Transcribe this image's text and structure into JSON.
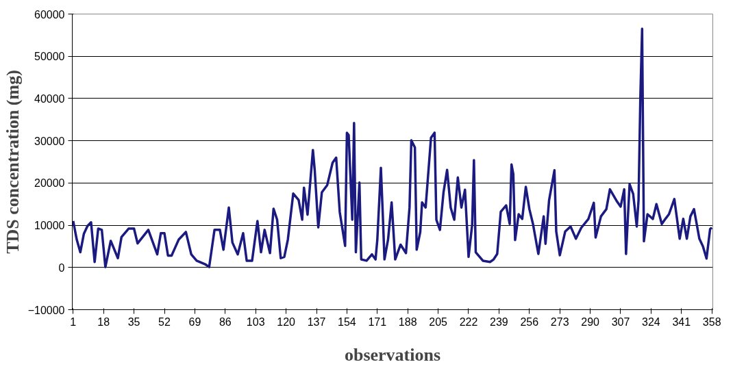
{
  "chart_data": {
    "type": "line",
    "xlabel": "observations",
    "ylabel": "TDS concentration (mg)",
    "x": [
      1,
      3,
      5,
      7,
      9,
      11,
      13,
      15,
      17,
      19,
      22,
      26,
      28,
      32,
      35,
      37,
      43,
      48,
      50,
      52,
      54,
      56,
      60,
      64,
      67,
      70,
      75,
      77,
      80,
      83,
      85,
      88,
      90,
      93,
      96,
      98,
      101,
      104,
      106,
      108,
      111,
      113,
      115,
      117,
      119,
      121,
      124,
      127,
      129,
      130,
      132,
      135,
      136,
      138,
      140,
      143,
      146,
      148,
      150,
      153,
      154,
      155,
      157,
      158,
      159,
      161,
      162,
      165,
      168,
      170,
      171,
      173,
      174,
      175,
      177,
      179,
      181,
      184,
      187,
      189,
      190,
      192,
      193,
      195,
      196,
      198,
      201,
      203,
      204,
      206,
      208,
      210,
      212,
      214,
      216,
      218,
      220,
      222,
      224,
      225,
      226,
      230,
      234,
      236,
      238,
      240,
      243,
      245,
      246,
      247,
      248,
      250,
      252,
      254,
      256,
      258,
      261,
      264,
      265,
      267,
      270,
      271,
      273,
      276,
      279,
      282,
      285,
      289,
      292,
      293,
      296,
      299,
      301,
      305,
      307,
      309,
      310,
      312,
      314,
      316,
      317,
      318,
      319,
      320,
      322,
      325,
      327,
      330,
      332,
      334,
      337,
      340,
      342,
      344,
      346,
      348,
      351,
      353,
      355,
      357,
      358
    ],
    "series": [
      {
        "color": "#1a1a80",
        "values": [
          11000,
          6600,
          3600,
          8000,
          9800,
          10700,
          1300,
          9200,
          8900,
          100,
          6300,
          2200,
          7200,
          9200,
          9200,
          5700,
          8900,
          3100,
          8100,
          8100,
          2800,
          2800,
          6600,
          8400,
          3100,
          1600,
          700,
          100,
          8900,
          8900,
          4200,
          14200,
          5900,
          3100,
          8100,
          1600,
          1600,
          11000,
          3600,
          8900,
          3400,
          13900,
          11300,
          2200,
          2500,
          6600,
          17500,
          16000,
          11300,
          18900,
          12500,
          27800,
          23100,
          9500,
          17800,
          19500,
          24800,
          26000,
          13100,
          5100,
          31900,
          31300,
          11300,
          34200,
          3600,
          20100,
          1900,
          1600,
          3100,
          1900,
          6600,
          23600,
          13100,
          1900,
          6600,
          15400,
          1900,
          5400,
          3400,
          14200,
          30100,
          28400,
          4200,
          8400,
          15400,
          14200,
          30700,
          31900,
          11300,
          8900,
          17800,
          23100,
          14200,
          11300,
          21300,
          14200,
          18400,
          2500,
          10100,
          25400,
          3600,
          1600,
          1300,
          1900,
          3200,
          13200,
          14700,
          10300,
          24400,
          22100,
          6500,
          12600,
          11500,
          19100,
          13800,
          10300,
          3200,
          12100,
          5600,
          15900,
          23000,
          8500,
          2900,
          8500,
          9700,
          6800,
          9400,
          11500,
          15300,
          7100,
          12100,
          13800,
          18500,
          15600,
          14400,
          18500,
          3200,
          19700,
          17400,
          9700,
          15900,
          40000,
          56500,
          6200,
          12600,
          11500,
          15000,
          10300,
          11500,
          12600,
          16200,
          6800,
          11500,
          6800,
          12100,
          13800,
          6800,
          5000,
          2100,
          9100,
          9400
        ]
      }
    ],
    "xlim": [
      0.5,
      358.5
    ],
    "xticks": [
      1,
      18,
      35,
      52,
      69,
      86,
      103,
      120,
      137,
      154,
      171,
      188,
      205,
      222,
      239,
      256,
      273,
      290,
      307,
      324,
      341,
      358
    ],
    "ylim": [
      -10000,
      60000
    ],
    "yticks": [
      -10000,
      0,
      10000,
      20000,
      30000,
      40000,
      50000,
      60000
    ],
    "grid": "y"
  }
}
